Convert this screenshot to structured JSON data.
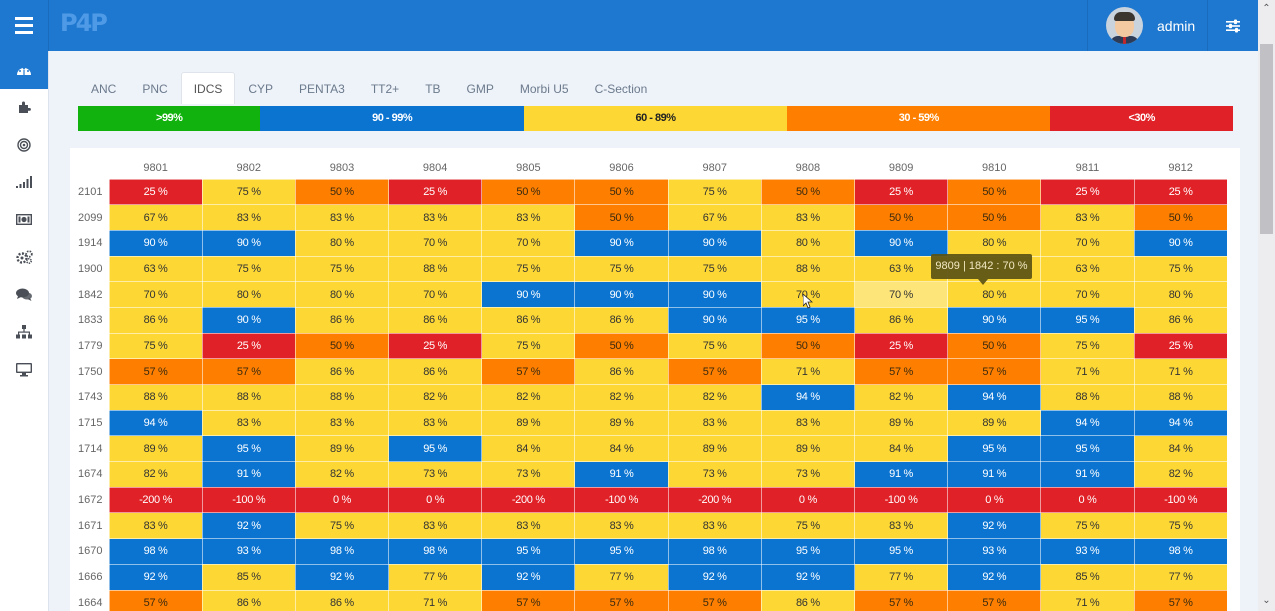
{
  "header": {
    "logo_text": "P4P",
    "user_name": "admin"
  },
  "sidebar": {
    "items": [
      {
        "icon": "dashboard-icon",
        "glyph": "◔",
        "active": true
      },
      {
        "icon": "puzzle-icon",
        "glyph": "✚",
        "active": false
      },
      {
        "icon": "target-icon",
        "glyph": "◎",
        "active": false
      },
      {
        "icon": "signal-bars-icon",
        "glyph": "▁▃▅",
        "active": false
      },
      {
        "icon": "money-icon",
        "glyph": "▣",
        "active": false
      },
      {
        "icon": "gears-icon",
        "glyph": "⚙",
        "active": false
      },
      {
        "icon": "chat-icon",
        "glyph": "💬",
        "active": false
      },
      {
        "icon": "sitemap-icon",
        "glyph": "⊥",
        "active": false
      },
      {
        "icon": "monitor-icon",
        "glyph": "▭",
        "active": false
      }
    ]
  },
  "tabs": [
    {
      "label": "ANC",
      "active": false
    },
    {
      "label": "PNC",
      "active": false
    },
    {
      "label": "IDCS",
      "active": true
    },
    {
      "label": "CYP",
      "active": false
    },
    {
      "label": "PENTA3",
      "active": false
    },
    {
      "label": "TT2+",
      "active": false
    },
    {
      "label": "TB",
      "active": false
    },
    {
      "label": "GMP",
      "active": false
    },
    {
      "label": "Morbi U5",
      "active": false
    },
    {
      "label": "C-Section",
      "active": false
    }
  ],
  "legend": [
    {
      "label": ">99%",
      "color": "#12b20e",
      "text_color": "#ffffff",
      "share": 0.158
    },
    {
      "label": "90 - 99%",
      "color": "#0b74d1",
      "text_color": "#ffffff",
      "share": 0.228
    },
    {
      "label": "60 - 89%",
      "color": "#fdd835",
      "text_color": "#222222",
      "share": 0.228
    },
    {
      "label": "30 - 59%",
      "color": "#fe7f00",
      "text_color": "#ffffff",
      "share": 0.228
    },
    {
      "label": "<30%",
      "color": "#e02127",
      "text_color": "#ffffff",
      "share": 0.158
    }
  ],
  "tooltip": {
    "text": "9809 | 1842 : 70 %"
  },
  "chart_data": {
    "type": "heatmap",
    "title": "IDCS",
    "unit": "%",
    "columns": [
      "9801",
      "9802",
      "9803",
      "9804",
      "9805",
      "9806",
      "9807",
      "9808",
      "9809",
      "9810",
      "9811",
      "9812"
    ],
    "rows": [
      {
        "label": "2101",
        "values": [
          25,
          75,
          50,
          25,
          50,
          50,
          75,
          50,
          25,
          50,
          25,
          25
        ]
      },
      {
        "label": "2099",
        "values": [
          67,
          83,
          83,
          83,
          83,
          50,
          67,
          83,
          50,
          50,
          83,
          50
        ]
      },
      {
        "label": "1914",
        "values": [
          90,
          90,
          80,
          70,
          70,
          90,
          90,
          80,
          90,
          80,
          70,
          90
        ]
      },
      {
        "label": "1900",
        "values": [
          63,
          75,
          75,
          88,
          75,
          75,
          75,
          88,
          63,
          null,
          63,
          75
        ]
      },
      {
        "label": "1842",
        "values": [
          70,
          80,
          80,
          70,
          90,
          90,
          90,
          70,
          70,
          80,
          70,
          80
        ]
      },
      {
        "label": "1833",
        "values": [
          86,
          90,
          86,
          86,
          86,
          86,
          90,
          95,
          86,
          90,
          95,
          86
        ]
      },
      {
        "label": "1779",
        "values": [
          75,
          25,
          50,
          25,
          75,
          50,
          75,
          50,
          25,
          50,
          75,
          25
        ]
      },
      {
        "label": "1750",
        "values": [
          57,
          57,
          86,
          86,
          57,
          86,
          57,
          71,
          57,
          57,
          71,
          71
        ]
      },
      {
        "label": "1743",
        "values": [
          88,
          88,
          88,
          82,
          82,
          82,
          82,
          94,
          82,
          94,
          88,
          88
        ]
      },
      {
        "label": "1715",
        "values": [
          94,
          83,
          83,
          83,
          89,
          89,
          83,
          83,
          89,
          89,
          94,
          94
        ]
      },
      {
        "label": "1714",
        "values": [
          89,
          95,
          89,
          95,
          84,
          84,
          89,
          89,
          84,
          95,
          95,
          84
        ]
      },
      {
        "label": "1674",
        "values": [
          82,
          91,
          82,
          73,
          73,
          91,
          73,
          73,
          91,
          91,
          91,
          82
        ]
      },
      {
        "label": "1672",
        "values": [
          -200,
          -100,
          0,
          0,
          -200,
          -100,
          -200,
          0,
          -100,
          0,
          0,
          -100
        ]
      },
      {
        "label": "1671",
        "values": [
          83,
          92,
          75,
          83,
          83,
          83,
          83,
          75,
          83,
          92,
          75,
          75
        ]
      },
      {
        "label": "1670",
        "values": [
          98,
          93,
          98,
          98,
          95,
          95,
          98,
          95,
          95,
          93,
          93,
          98
        ]
      },
      {
        "label": "1666",
        "values": [
          92,
          85,
          92,
          77,
          92,
          77,
          92,
          92,
          77,
          92,
          85,
          77
        ]
      },
      {
        "label": "1664",
        "values": [
          57,
          86,
          86,
          71,
          57,
          57,
          57,
          86,
          57,
          57,
          71,
          57
        ]
      }
    ],
    "hidden_by_tooltip": {
      "row": "1900",
      "column": "9810"
    },
    "hovered": {
      "row": "1842",
      "column": "9809",
      "value": 70
    },
    "color_scale": [
      {
        "range": ">99%",
        "color": "#12b20e"
      },
      {
        "range": "90 - 99%",
        "color": "#0b74d1"
      },
      {
        "range": "60 - 89%",
        "color": "#fdd835"
      },
      {
        "range": "30 - 59%",
        "color": "#fe7f00"
      },
      {
        "range": "<30%",
        "color": "#e02127"
      }
    ]
  }
}
